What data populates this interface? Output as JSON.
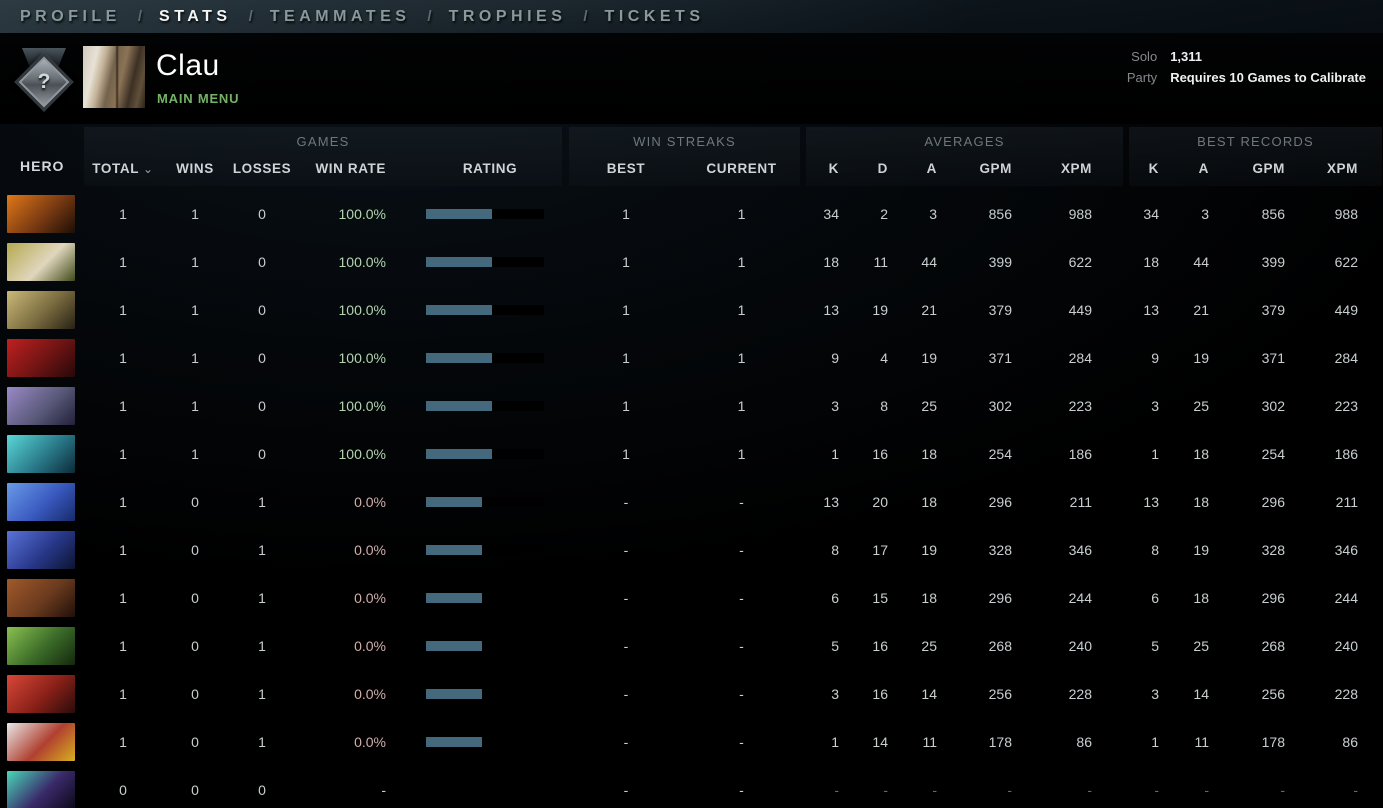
{
  "nav": {
    "separator": "/",
    "items": [
      {
        "label": "PROFILE",
        "active": false
      },
      {
        "label": "STATS",
        "active": true
      },
      {
        "label": "TEAMMATES",
        "active": false
      },
      {
        "label": "TROPHIES",
        "active": false
      },
      {
        "label": "TICKETS",
        "active": false
      }
    ]
  },
  "header": {
    "player_name": "Clau",
    "subtitle": "MAIN MENU",
    "rank_badge_glyph": "?",
    "mmr": {
      "solo_label": "Solo",
      "solo_value": "1,311",
      "party_label": "Party",
      "party_value": "Requires 10 Games to Calibrate"
    }
  },
  "table": {
    "hero_column_label": "HERO",
    "sort_caret": "⌄",
    "groups": [
      {
        "label": "GAMES",
        "columns": [
          "TOTAL",
          "WINS",
          "LOSSES",
          "WIN RATE",
          "RATING"
        ]
      },
      {
        "label": "WIN STREAKS",
        "columns": [
          "BEST",
          "CURRENT"
        ]
      },
      {
        "label": "AVERAGES",
        "columns": [
          "K",
          "D",
          "A",
          "GPM",
          "XPM"
        ]
      },
      {
        "label": "BEST RECORDS",
        "columns": [
          "K",
          "A",
          "GPM",
          "XPM"
        ]
      }
    ],
    "colors": {
      "win_rate_win": "#b2d6ad",
      "win_rate_loss": "#d4aeae",
      "rating_bar_fill": "#45697c",
      "rating_bar_bg": "#000000",
      "dim_text": "#64696c"
    },
    "rows": [
      {
        "hero": "chaos-knight",
        "hero_colors": [
          "#e07818",
          "#7a3a12",
          "#1c0e06"
        ],
        "total": "1",
        "wins": "1",
        "losses": "0",
        "win_rate": "100.0%",
        "win_rate_state": "win",
        "rating_fill_pct": 56,
        "streak_best": "1",
        "streak_current": "1",
        "avg_k": "34",
        "avg_d": "2",
        "avg_a": "3",
        "avg_gpm": "856",
        "avg_xpm": "988",
        "best_k": "34",
        "best_a": "3",
        "best_gpm": "856",
        "best_xpm": "988",
        "dim": false
      },
      {
        "hero": "natures-prophet",
        "hero_colors": [
          "#b5a94f",
          "#e0d6bd",
          "#3f4a18"
        ],
        "total": "1",
        "wins": "1",
        "losses": "0",
        "win_rate": "100.0%",
        "win_rate_state": "win",
        "rating_fill_pct": 56,
        "streak_best": "1",
        "streak_current": "1",
        "avg_k": "18",
        "avg_d": "11",
        "avg_a": "44",
        "avg_gpm": "399",
        "avg_xpm": "622",
        "best_k": "18",
        "best_a": "44",
        "best_gpm": "399",
        "best_xpm": "622",
        "dim": false
      },
      {
        "hero": "sand-king",
        "hero_colors": [
          "#cbb878",
          "#7a6c40",
          "#262114"
        ],
        "total": "1",
        "wins": "1",
        "losses": "0",
        "win_rate": "100.0%",
        "win_rate_state": "win",
        "rating_fill_pct": 56,
        "streak_best": "1",
        "streak_current": "1",
        "avg_k": "13",
        "avg_d": "19",
        "avg_a": "21",
        "avg_gpm": "379",
        "avg_xpm": "449",
        "best_k": "13",
        "best_a": "21",
        "best_gpm": "379",
        "best_xpm": "449",
        "dim": false
      },
      {
        "hero": "warlock",
        "hero_colors": [
          "#c02020",
          "#701414",
          "#260808"
        ],
        "total": "1",
        "wins": "1",
        "losses": "0",
        "win_rate": "100.0%",
        "win_rate_state": "win",
        "rating_fill_pct": 56,
        "streak_best": "1",
        "streak_current": "1",
        "avg_k": "9",
        "avg_d": "4",
        "avg_a": "19",
        "avg_gpm": "371",
        "avg_xpm": "284",
        "best_k": "9",
        "best_a": "19",
        "best_gpm": "371",
        "best_xpm": "284",
        "dim": false
      },
      {
        "hero": "gyrocopter",
        "hero_colors": [
          "#9a8ac8",
          "#5a5a7a",
          "#22203a"
        ],
        "total": "1",
        "wins": "1",
        "losses": "0",
        "win_rate": "100.0%",
        "win_rate_state": "win",
        "rating_fill_pct": 56,
        "streak_best": "1",
        "streak_current": "1",
        "avg_k": "3",
        "avg_d": "8",
        "avg_a": "25",
        "avg_gpm": "302",
        "avg_xpm": "223",
        "best_k": "3",
        "best_a": "25",
        "best_gpm": "302",
        "best_xpm": "223",
        "dim": false
      },
      {
        "hero": "winter-wyvern",
        "hero_colors": [
          "#5ad8d8",
          "#2a7a8a",
          "#0c2a38"
        ],
        "total": "1",
        "wins": "1",
        "losses": "0",
        "win_rate": "100.0%",
        "win_rate_state": "win",
        "rating_fill_pct": 56,
        "streak_best": "1",
        "streak_current": "1",
        "avg_k": "1",
        "avg_d": "16",
        "avg_a": "18",
        "avg_gpm": "254",
        "avg_xpm": "186",
        "best_k": "1",
        "best_a": "18",
        "best_gpm": "254",
        "best_xpm": "186",
        "dim": false
      },
      {
        "hero": "puck",
        "hero_colors": [
          "#6a9ae8",
          "#3a5ac0",
          "#162a6a"
        ],
        "total": "1",
        "wins": "0",
        "losses": "1",
        "win_rate": "0.0%",
        "win_rate_state": "loss",
        "rating_fill_pct": 47.5,
        "streak_best": "-",
        "streak_current": "-",
        "avg_k": "13",
        "avg_d": "20",
        "avg_a": "18",
        "avg_gpm": "296",
        "avg_xpm": "211",
        "best_k": "13",
        "best_a": "18",
        "best_gpm": "296",
        "best_xpm": "211",
        "dim": false
      },
      {
        "hero": "night-stalker",
        "hero_colors": [
          "#5a72d8",
          "#28388a",
          "#0c1430"
        ],
        "total": "1",
        "wins": "0",
        "losses": "1",
        "win_rate": "0.0%",
        "win_rate_state": "loss",
        "rating_fill_pct": 47.5,
        "streak_best": "-",
        "streak_current": "-",
        "avg_k": "8",
        "avg_d": "17",
        "avg_a": "19",
        "avg_gpm": "328",
        "avg_xpm": "346",
        "best_k": "8",
        "best_a": "19",
        "best_gpm": "328",
        "best_xpm": "346",
        "dim": false
      },
      {
        "hero": "ursa",
        "hero_colors": [
          "#a05a2a",
          "#6a3a1e",
          "#201008"
        ],
        "total": "1",
        "wins": "0",
        "losses": "1",
        "win_rate": "0.0%",
        "win_rate_state": "loss",
        "rating_fill_pct": 47.5,
        "streak_best": "-",
        "streak_current": "-",
        "avg_k": "6",
        "avg_d": "15",
        "avg_a": "18",
        "avg_gpm": "296",
        "avg_xpm": "244",
        "best_k": "6",
        "best_a": "18",
        "best_gpm": "296",
        "best_xpm": "244",
        "dim": false
      },
      {
        "hero": "timbersaw",
        "hero_colors": [
          "#8ac050",
          "#3a6a28",
          "#14280e"
        ],
        "total": "1",
        "wins": "0",
        "losses": "1",
        "win_rate": "0.0%",
        "win_rate_state": "loss",
        "rating_fill_pct": 47.5,
        "streak_best": "-",
        "streak_current": "-",
        "avg_k": "5",
        "avg_d": "16",
        "avg_a": "25",
        "avg_gpm": "268",
        "avg_xpm": "240",
        "best_k": "5",
        "best_a": "25",
        "best_gpm": "268",
        "best_xpm": "240",
        "dim": false
      },
      {
        "hero": "broodmother",
        "hero_colors": [
          "#d84838",
          "#8a2018",
          "#2a0c0a"
        ],
        "total": "1",
        "wins": "0",
        "losses": "1",
        "win_rate": "0.0%",
        "win_rate_state": "loss",
        "rating_fill_pct": 47.5,
        "streak_best": "-",
        "streak_current": "-",
        "avg_k": "3",
        "avg_d": "16",
        "avg_a": "14",
        "avg_gpm": "256",
        "avg_xpm": "228",
        "best_k": "3",
        "best_a": "14",
        "best_gpm": "256",
        "best_xpm": "228",
        "dim": false
      },
      {
        "hero": "clockwerk",
        "hero_colors": [
          "#e8e8e8",
          "#b04030",
          "#d8b020"
        ],
        "total": "1",
        "wins": "0",
        "losses": "1",
        "win_rate": "0.0%",
        "win_rate_state": "loss",
        "rating_fill_pct": 47.5,
        "streak_best": "-",
        "streak_current": "-",
        "avg_k": "1",
        "avg_d": "14",
        "avg_a": "11",
        "avg_gpm": "178",
        "avg_xpm": "86",
        "best_k": "1",
        "best_a": "11",
        "best_gpm": "178",
        "best_xpm": "86",
        "dim": false
      },
      {
        "hero": "spectre",
        "hero_colors": [
          "#4ad8b8",
          "#3a2a6a",
          "#0c0818"
        ],
        "total": "0",
        "wins": "0",
        "losses": "0",
        "win_rate": "-",
        "win_rate_state": "none",
        "rating_fill_pct": null,
        "streak_best": "-",
        "streak_current": "-",
        "avg_k": "-",
        "avg_d": "-",
        "avg_a": "-",
        "avg_gpm": "-",
        "avg_xpm": "-",
        "best_k": "-",
        "best_a": "-",
        "best_gpm": "-",
        "best_xpm": "-",
        "dim": true
      }
    ]
  }
}
